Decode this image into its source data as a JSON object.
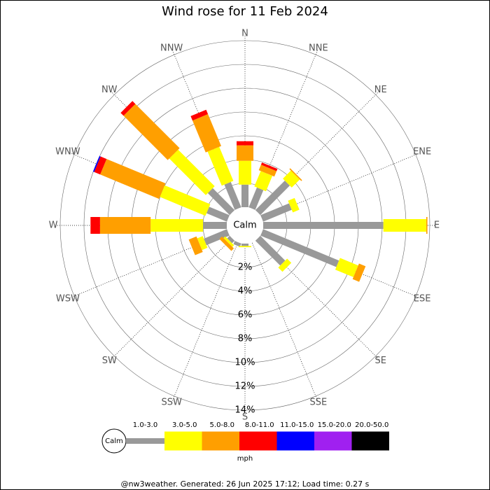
{
  "chart_data": {
    "type": "windrose",
    "title": "Wind rose for 11 Feb 2024",
    "categories": [
      "N",
      "NNE",
      "NE",
      "ENE",
      "E",
      "ESE",
      "SE",
      "SSE",
      "S",
      "SSW",
      "SW",
      "WSW",
      "W",
      "WNW",
      "NW",
      "NNW"
    ],
    "series": [
      {
        "name": "1.0-3.0",
        "color": "#999999",
        "values": [
          1.9,
          1.8,
          3.5,
          2.6,
          10.1,
          6.9,
          2.95,
          0,
          0.2,
          0.3,
          0.3,
          2.1,
          2.0,
          1.85,
          2.6,
          2.3
        ]
      },
      {
        "name": "3.0-5.0",
        "color": "#ffff00",
        "values": [
          2.0,
          1.4,
          0.95,
          0.6,
          3.6,
          1.65,
          0.5,
          0,
          0.1,
          0,
          0.2,
          0.5,
          4.4,
          4.15,
          4.35,
          3.1
        ]
      },
      {
        "name": "5.0-8.0",
        "color": "#ff9f00",
        "values": [
          1.3,
          0.5,
          0.1,
          0,
          0.1,
          0.6,
          0,
          0,
          0,
          0,
          0.3,
          0.7,
          4.25,
          5.35,
          5.25,
          2.9
        ]
      },
      {
        "name": "8.0-11.0",
        "color": "#ff0000",
        "values": [
          0.35,
          0.2,
          0,
          0,
          0,
          0,
          0,
          0,
          0,
          0,
          0,
          0,
          0.8,
          0.55,
          0.35,
          0.4
        ]
      },
      {
        "name": "11.0-15.0",
        "color": "#0000ff",
        "values": [
          0,
          0,
          0,
          0,
          0,
          0,
          0,
          0,
          0,
          0,
          0,
          0,
          0,
          0.1,
          0,
          0
        ]
      },
      {
        "name": "15.0-20.0",
        "color": "#a020f0",
        "values": [
          0,
          0,
          0,
          0,
          0,
          0,
          0,
          0,
          0,
          0,
          0,
          0,
          0,
          0,
          0,
          0
        ]
      },
      {
        "name": "20.0-50.0",
        "color": "#000000",
        "values": [
          0,
          0,
          0,
          0,
          0,
          0,
          0,
          0,
          0,
          0,
          0,
          0,
          0,
          0,
          0,
          0
        ]
      }
    ],
    "rlim": [
      0,
      14
    ],
    "rticks": [
      {
        "value": 2,
        "label": "2%"
      },
      {
        "value": 4,
        "label": "4%"
      },
      {
        "value": 6,
        "label": "6%"
      },
      {
        "value": 8,
        "label": "8%"
      },
      {
        "value": 10,
        "label": "10%"
      },
      {
        "value": 12,
        "label": "12%"
      },
      {
        "value": 14,
        "label": "14%"
      }
    ],
    "calm_label": "Calm",
    "legend_unit": "mph",
    "footer": "@nw3weather. Generated: 26 Jun 2025 17:12; Load time: 0.27 s"
  }
}
